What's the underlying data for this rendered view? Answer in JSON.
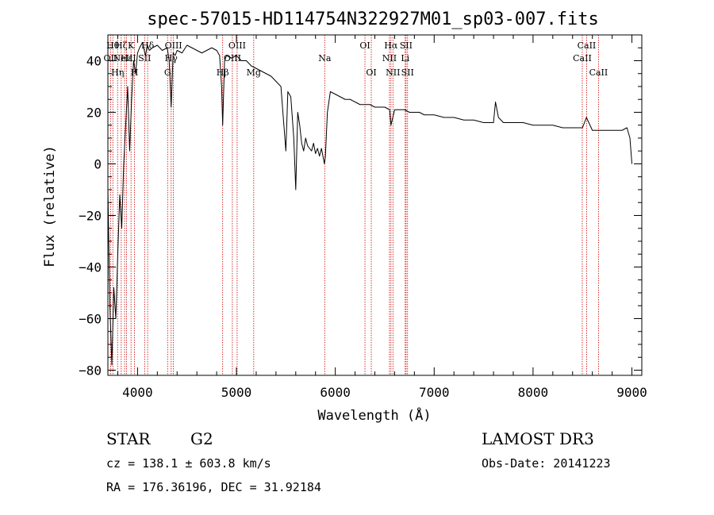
{
  "chart_data": {
    "type": "line",
    "title": "spec-57015-HD114754N322927M01_sp03-007.fits",
    "xlabel": "Wavelength (Å)",
    "ylabel": "Flux (relative)",
    "xlim": [
      3700,
      9100
    ],
    "ylim": [
      -82,
      50
    ],
    "xticks": [
      4000,
      5000,
      6000,
      7000,
      8000,
      9000
    ],
    "yticks": [
      -80,
      -60,
      -40,
      -20,
      0,
      20,
      40
    ],
    "xtick_labels": [
      "4000",
      "5000",
      "6000",
      "7000",
      "8000",
      "9000"
    ],
    "ytick_labels": [
      "−80",
      "−60",
      "−40",
      "−20",
      "0",
      "20",
      "40"
    ],
    "grid": false,
    "series": [
      {
        "color": "#000000",
        "x": [
          3700,
          3720,
          3740,
          3760,
          3780,
          3800,
          3820,
          3840,
          3860,
          3880,
          3900,
          3920,
          3940,
          3960,
          3980,
          4000,
          4020,
          4050,
          4080,
          4100,
          4120,
          4150,
          4200,
          4250,
          4300,
          4320,
          4340,
          4360,
          4380,
          4400,
          4450,
          4500,
          4550,
          4600,
          4650,
          4700,
          4750,
          4800,
          4830,
          4850,
          4861,
          4880,
          4900,
          4950,
          5000,
          5050,
          5100,
          5150,
          5200,
          5250,
          5300,
          5350,
          5400,
          5450,
          5480,
          5500,
          5520,
          5550,
          5580,
          5600,
          5620,
          5640,
          5660,
          5680,
          5700,
          5720,
          5740,
          5760,
          5780,
          5800,
          5820,
          5840,
          5860,
          5880,
          5890,
          5900,
          5920,
          5950,
          6000,
          6050,
          6100,
          6150,
          6200,
          6250,
          6300,
          6350,
          6400,
          6450,
          6500,
          6550,
          6563,
          6600,
          6650,
          6700,
          6750,
          6800,
          6850,
          6900,
          6950,
          7000,
          7100,
          7200,
          7300,
          7400,
          7500,
          7600,
          7620,
          7650,
          7700,
          7800,
          7900,
          8000,
          8100,
          8200,
          8300,
          8400,
          8500,
          8540,
          8600,
          8700,
          8800,
          8900,
          8950,
          8980,
          9000
        ],
        "y": [
          -10,
          -55,
          -78,
          -48,
          -60,
          -35,
          -12,
          -25,
          0,
          15,
          30,
          5,
          25,
          40,
          35,
          43,
          45,
          47,
          42,
          46,
          44,
          45,
          46,
          44,
          45,
          40,
          22,
          43,
          42,
          44,
          43,
          46,
          45,
          44,
          43,
          44,
          45,
          44,
          42,
          30,
          15,
          40,
          42,
          41,
          42,
          40,
          40,
          38,
          37,
          36,
          35,
          34,
          32,
          30,
          15,
          5,
          28,
          26,
          10,
          -10,
          20,
          15,
          8,
          5,
          10,
          7,
          6,
          5,
          8,
          4,
          6,
          3,
          6,
          2,
          0,
          3,
          20,
          28,
          27,
          26,
          25,
          25,
          24,
          23,
          23,
          23,
          22,
          22,
          22,
          21,
          15,
          21,
          21,
          21,
          20,
          20,
          20,
          19,
          19,
          19,
          18,
          18,
          17,
          17,
          16,
          16,
          24,
          18,
          16,
          16,
          16,
          15,
          15,
          15,
          14,
          14,
          14,
          18,
          13,
          13,
          13,
          13,
          14,
          10,
          0
        ]
      }
    ],
    "annotations": {
      "line_markers": [
        {
          "x": 3727,
          "label": "OII",
          "level": 1
        },
        {
          "x": 3750,
          "label": "Hθ",
          "level": 0
        },
        {
          "x": 3798,
          "label": "Hη",
          "level": 2
        },
        {
          "x": 3835,
          "label": "Hζ",
          "level": 0
        },
        {
          "x": 3869,
          "label": "NeIII",
          "level": 1
        },
        {
          "x": 3889,
          "label": "Hε",
          "level": 1
        },
        {
          "x": 3934,
          "label": "K",
          "level": 0
        },
        {
          "x": 3969,
          "label": "H",
          "level": 2
        },
        {
          "x": 4072,
          "label": "SII",
          "level": 1
        },
        {
          "x": 4102,
          "label": "Hδ",
          "level": 0
        },
        {
          "x": 4304,
          "label": "G",
          "level": 2
        },
        {
          "x": 4340,
          "label": "Hγ",
          "level": 1
        },
        {
          "x": 4363,
          "label": "OIII",
          "level": 0
        },
        {
          "x": 4861,
          "label": "Hβ",
          "level": 2
        },
        {
          "x": 4959,
          "label": "OIII",
          "level": 1
        },
        {
          "x": 5007,
          "label": "OIII",
          "level": 0
        },
        {
          "x": 5175,
          "label": "Mg",
          "level": 2
        },
        {
          "x": 5893,
          "label": "Na",
          "level": 1
        },
        {
          "x": 6300,
          "label": "OI",
          "level": 0
        },
        {
          "x": 6364,
          "label": "OI",
          "level": 2
        },
        {
          "x": 6548,
          "label": "NII",
          "level": 1
        },
        {
          "x": 6563,
          "label": "Hα",
          "level": 0
        },
        {
          "x": 6583,
          "label": "NII",
          "level": 2
        },
        {
          "x": 6707,
          "label": "Li",
          "level": 1
        },
        {
          "x": 6716,
          "label": "SII",
          "level": 0
        },
        {
          "x": 6731,
          "label": "SII",
          "level": 2
        },
        {
          "x": 8498,
          "label": "CaII",
          "level": 1
        },
        {
          "x": 8542,
          "label": "CaII",
          "level": 0
        },
        {
          "x": 8662,
          "label": "CaII",
          "level": 2
        }
      ],
      "marker_color": "#cc0000"
    }
  },
  "info": {
    "object_type": "STAR",
    "subclass": "G2",
    "survey": "LAMOST DR3",
    "redshift_line": "cz = 138.1 ± 603.8 km/s",
    "obs_date_line": "Obs-Date: 20141223",
    "coord_line": "RA = 176.36196, DEC =  31.92184"
  }
}
